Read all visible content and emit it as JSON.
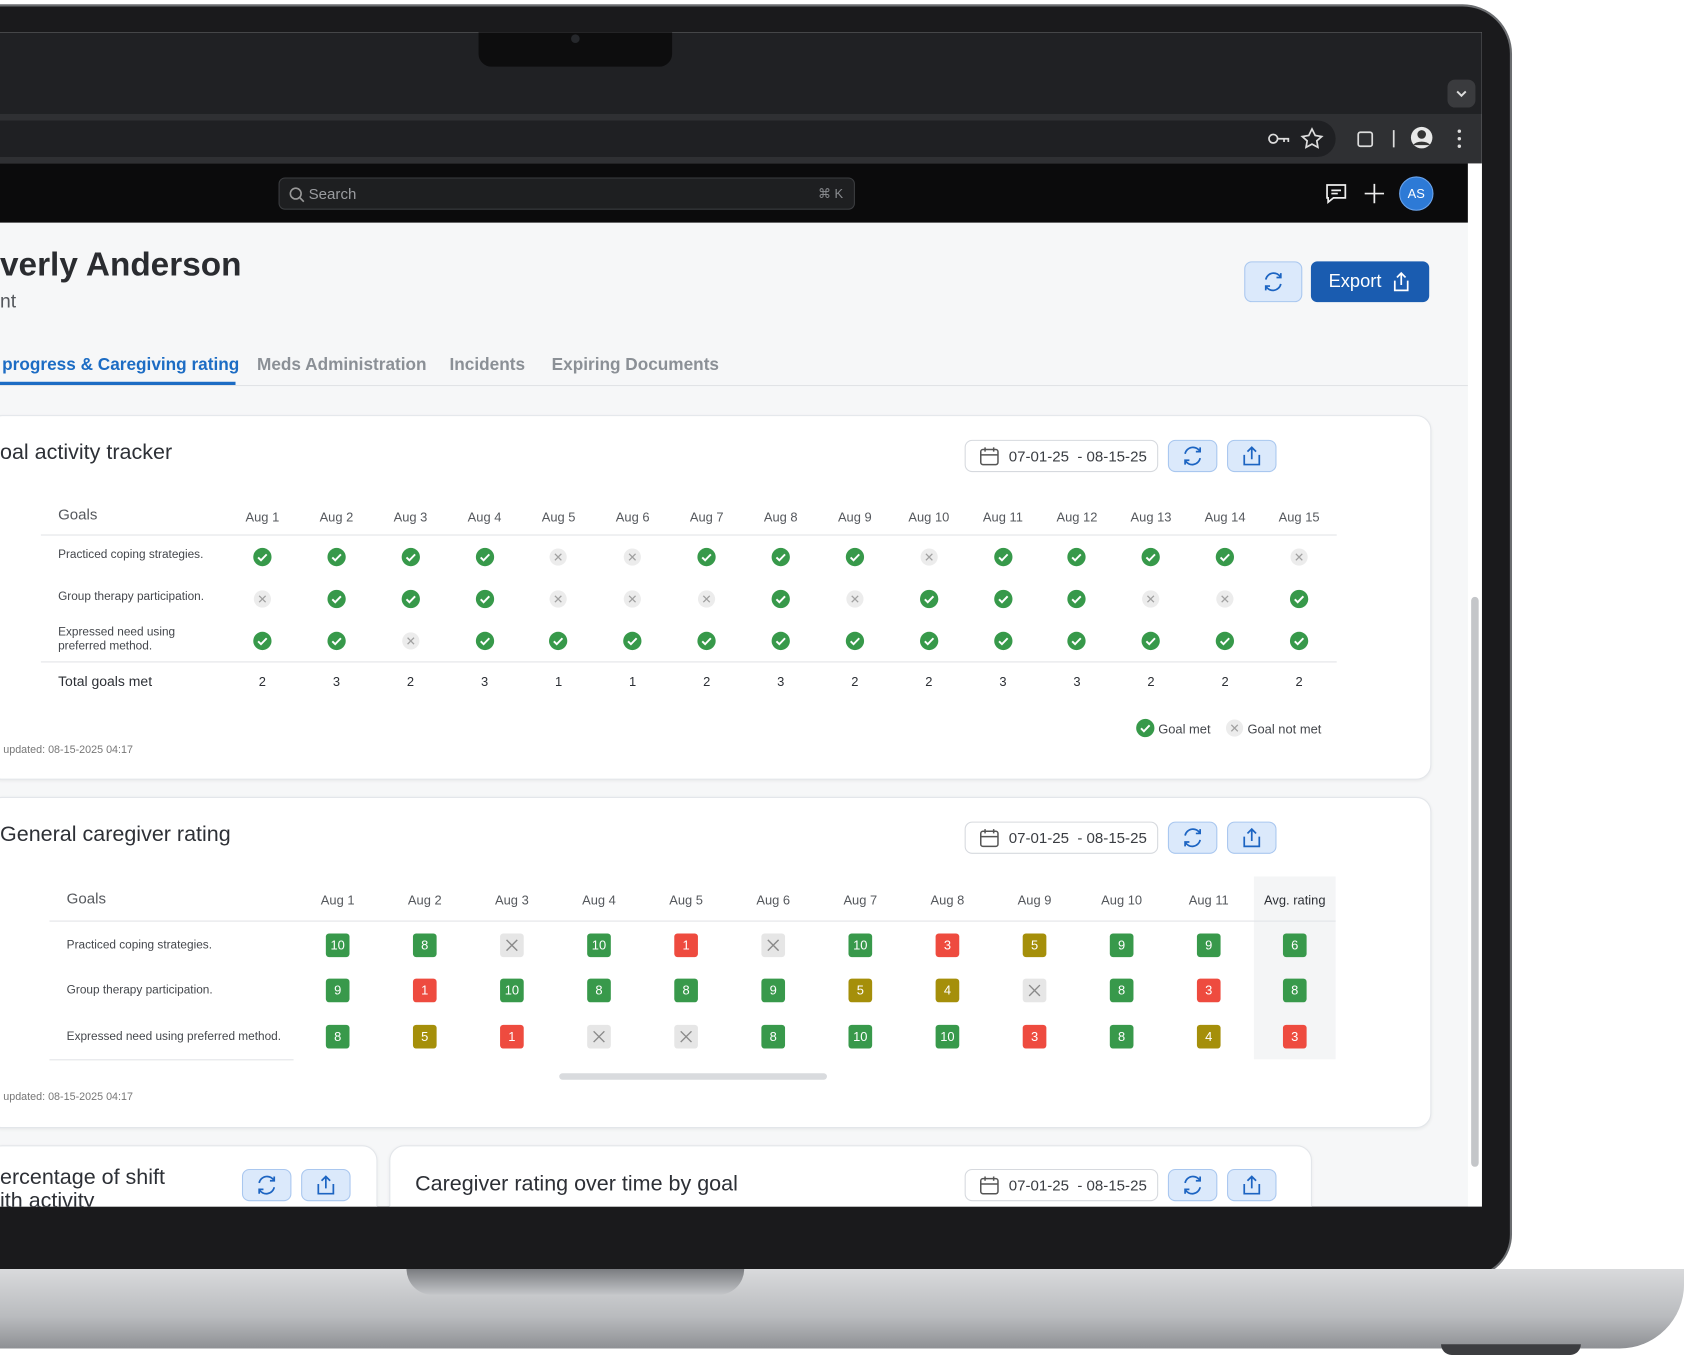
{
  "search": {
    "placeholder": "Search",
    "shortcut": "⌘ K"
  },
  "avatar": "AS",
  "header": {
    "name": "verly Anderson",
    "subtitle": "nt",
    "export": "Export"
  },
  "tabs": [
    "progress & Caregiving rating",
    "Meds Administration",
    "Incidents",
    "Expiring Documents"
  ],
  "tracker": {
    "title": "oal activity tracker",
    "date_range": "07-01-25  - 08-15-25",
    "goals_header": "Goals",
    "days": [
      "Aug 1",
      "Aug 2",
      "Aug 3",
      "Aug 4",
      "Aug 5",
      "Aug 6",
      "Aug 7",
      "Aug 8",
      "Aug 9",
      "Aug 10",
      "Aug 11",
      "Aug 12",
      "Aug 13",
      "Aug 14",
      "Aug 15"
    ],
    "rows": [
      {
        "goal": "Practiced coping strategies.",
        "met": [
          true,
          true,
          true,
          true,
          false,
          false,
          true,
          true,
          true,
          false,
          true,
          true,
          true,
          true,
          false
        ]
      },
      {
        "goal": "Group therapy participation.",
        "met": [
          false,
          true,
          true,
          true,
          false,
          false,
          false,
          true,
          false,
          true,
          true,
          true,
          false,
          false,
          true
        ]
      },
      {
        "goal": "Expressed need using preferred method.",
        "met": [
          true,
          true,
          false,
          true,
          true,
          true,
          true,
          true,
          true,
          true,
          true,
          true,
          true,
          true,
          true
        ]
      }
    ],
    "total_label": "Total goals met",
    "totals": [
      2,
      3,
      2,
      3,
      1,
      1,
      2,
      3,
      2,
      2,
      3,
      3,
      2,
      2,
      2
    ],
    "legend": {
      "met": "Goal met",
      "not_met": "Goal not met"
    },
    "updated": "updated: 08-15-2025 04:17"
  },
  "rating": {
    "title": "General caregiver rating",
    "date_range": "07-01-25  - 08-15-25",
    "goals_header": "Goals",
    "days": [
      "Aug 1",
      "Aug 2",
      "Aug 3",
      "Aug 4",
      "Aug 5",
      "Aug 6",
      "Aug 7",
      "Aug 8",
      "Aug 9",
      "Aug 10",
      "Aug 11"
    ],
    "avg_header": "Avg. rating",
    "rows": [
      {
        "goal": "Practiced coping strategies.",
        "ratings": [
          10,
          8,
          null,
          10,
          1,
          null,
          10,
          3,
          5,
          9,
          9
        ],
        "avg": 6
      },
      {
        "goal": "Group therapy participation.",
        "ratings": [
          9,
          1,
          10,
          8,
          8,
          9,
          5,
          4,
          null,
          8,
          3
        ],
        "avg": 8
      },
      {
        "goal": "Expressed need using preferred method.",
        "ratings": [
          8,
          5,
          1,
          null,
          null,
          8,
          10,
          10,
          3,
          8,
          4
        ],
        "avg": 3
      }
    ],
    "updated": "updated: 08-15-2025 04:17"
  },
  "shift": {
    "title": [
      "ercentage of shift",
      "ith activity"
    ]
  },
  "over_time": {
    "title": "Caregiver rating over time by goal",
    "date_range": "07-01-25  - 08-15-25"
  }
}
